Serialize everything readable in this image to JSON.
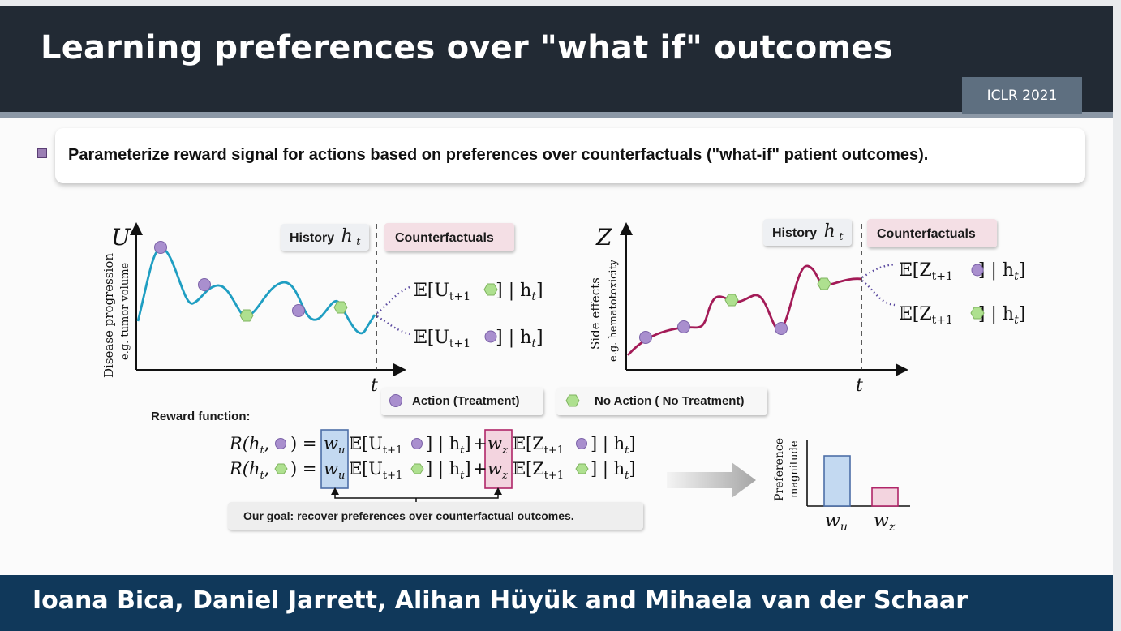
{
  "slide": {
    "title": "Learning preferences over \"what if\" outcomes",
    "venue": "ICLR 2021",
    "bullet": "Parameterize reward signal for actions based on preferences over counterfactuals (\"what-if\" patient outcomes).",
    "authors": "Ioana Bica, Daniel Jarrett, Alihan Hüyük and Mihaela van der Schaar"
  },
  "colors": {
    "header_bg": "#222a34",
    "footer_bg": "#10385a",
    "treatment": "#a98fce",
    "no_treatment": "#aee08f",
    "curve_left": "#1f9ec2",
    "curve_right": "#a31b57",
    "w_u_fill": "#c3d9f1",
    "w_z_fill": "#f3d4df"
  },
  "left_plot": {
    "y_symbol": "U",
    "y_label_1": "Disease progression",
    "y_label_2": "e.g. tumor volume",
    "x_symbol": "t",
    "history_label": "History",
    "history_var": "h",
    "history_sub": "t",
    "counterfactual_label": "Counterfactuals",
    "expect_a": "𝔼[U",
    "expect_b": "t+1",
    "expect_c": "] | h",
    "expect_d": "t",
    "expect_e": "]"
  },
  "right_plot": {
    "y_symbol": "Z",
    "y_label_1": "Side effects",
    "y_label_2": "e.g. hematotoxicity",
    "x_symbol": "t",
    "history_label": "History",
    "history_var": "h",
    "history_sub": "t",
    "counterfactual_label": "Counterfactuals",
    "expect_a": "𝔼[Z",
    "expect_b": "t+1",
    "expect_c": "] | h",
    "expect_d": "t",
    "expect_e": "]"
  },
  "legend": {
    "treatment": "Action (Treatment)",
    "no_treatment": "No Action ( No Treatment)"
  },
  "reward": {
    "label": "Reward function:",
    "lhs_a": "R(h",
    "lhs_b": "t",
    "lhs_c": ",",
    "lhs_d": ") =",
    "w_u": "w",
    "w_u_sub": "u",
    "w_z": "w",
    "w_z_sub": "z",
    "term1_a": "𝔼[U",
    "term1_b": "t+1",
    "term2_a": "𝔼[Z",
    "term2_b": "t+1",
    "bracket_close": "] | h",
    "bracket_sub": "t",
    "bracket_end": "]",
    "plus": "+",
    "goal": "Our goal: recover preferences over counterfactual outcomes."
  },
  "preference_chart": {
    "y_label_1": "Preference",
    "y_label_2": "magnitude",
    "categories": [
      "w_u",
      "w_z"
    ],
    "cat_main": [
      "w",
      "w"
    ],
    "cat_sub": [
      "u",
      "z"
    ],
    "values": [
      1.0,
      0.36
    ]
  }
}
